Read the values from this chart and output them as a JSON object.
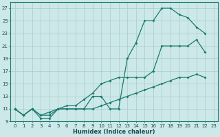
{
  "xlabel": "Humidex (Indice chaleur)",
  "bg_color": "#cce8e8",
  "grid_color": "#aacccc",
  "line_color": "#1a7a6e",
  "xlim": [
    -0.5,
    23.5
  ],
  "ylim": [
    9,
    28
  ],
  "yticks": [
    9,
    11,
    13,
    15,
    17,
    19,
    21,
    23,
    25,
    27
  ],
  "xticks": [
    0,
    1,
    2,
    3,
    4,
    5,
    6,
    7,
    8,
    9,
    10,
    11,
    12,
    13,
    14,
    15,
    16,
    17,
    18,
    19,
    20,
    21,
    22,
    23
  ],
  "line1_x": [
    0,
    1,
    2,
    3,
    4,
    5,
    6,
    7,
    8,
    9,
    10,
    11,
    12,
    13,
    14,
    15,
    16,
    17,
    18,
    19,
    20,
    21,
    22
  ],
  "line1_y": [
    11,
    10,
    11,
    9.5,
    9.5,
    11,
    11,
    11,
    11,
    13,
    13,
    11,
    11,
    19,
    21.5,
    25,
    25,
    27,
    27,
    26,
    25.5,
    24,
    23
  ],
  "line2_x": [
    0,
    1,
    2,
    3,
    4,
    5,
    6,
    7,
    8,
    9,
    10,
    11,
    12,
    13,
    14,
    15,
    16,
    17,
    18,
    19,
    20,
    21,
    22
  ],
  "line2_y": [
    11,
    10,
    11,
    10,
    10,
    11,
    11,
    11,
    11,
    11,
    11.5,
    12,
    12.5,
    13,
    13.5,
    14,
    14.5,
    15,
    15.5,
    16,
    16,
    16.5,
    16
  ],
  "line3_x": [
    0,
    1,
    2,
    3,
    4,
    5,
    6,
    7,
    8,
    9,
    10,
    11,
    12,
    13,
    14,
    15,
    16,
    17,
    18,
    19,
    20,
    21,
    22
  ],
  "line3_y": [
    11,
    10,
    11,
    10,
    10.5,
    11,
    11.5,
    11.5,
    12.5,
    13.5,
    15,
    15.5,
    16,
    16,
    16,
    16,
    17,
    21,
    21,
    21,
    21,
    22,
    20
  ]
}
